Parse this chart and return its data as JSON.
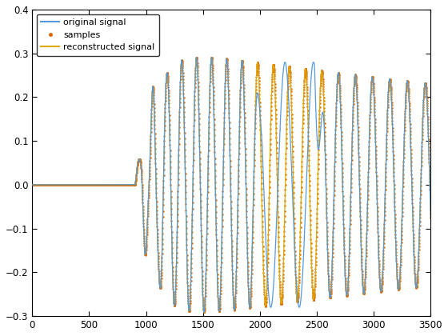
{
  "title": "",
  "xlim": [
    0,
    3500
  ],
  "ylim": [
    -0.3,
    0.4
  ],
  "xticks": [
    0,
    500,
    1000,
    1500,
    2000,
    2500,
    3000,
    3500
  ],
  "yticks": [
    -0.3,
    -0.2,
    -0.1,
    0,
    0.1,
    0.2,
    0.3,
    0.4
  ],
  "legend_labels": [
    "original signal",
    "samples",
    "reconstructed signal"
  ],
  "original_color": "#5599dd",
  "samples_color": "#dd6600",
  "reconstructed_color": "#ddaa00",
  "background_color": "#ffffff",
  "figsize": [
    5.6,
    4.2
  ],
  "dpi": 100
}
